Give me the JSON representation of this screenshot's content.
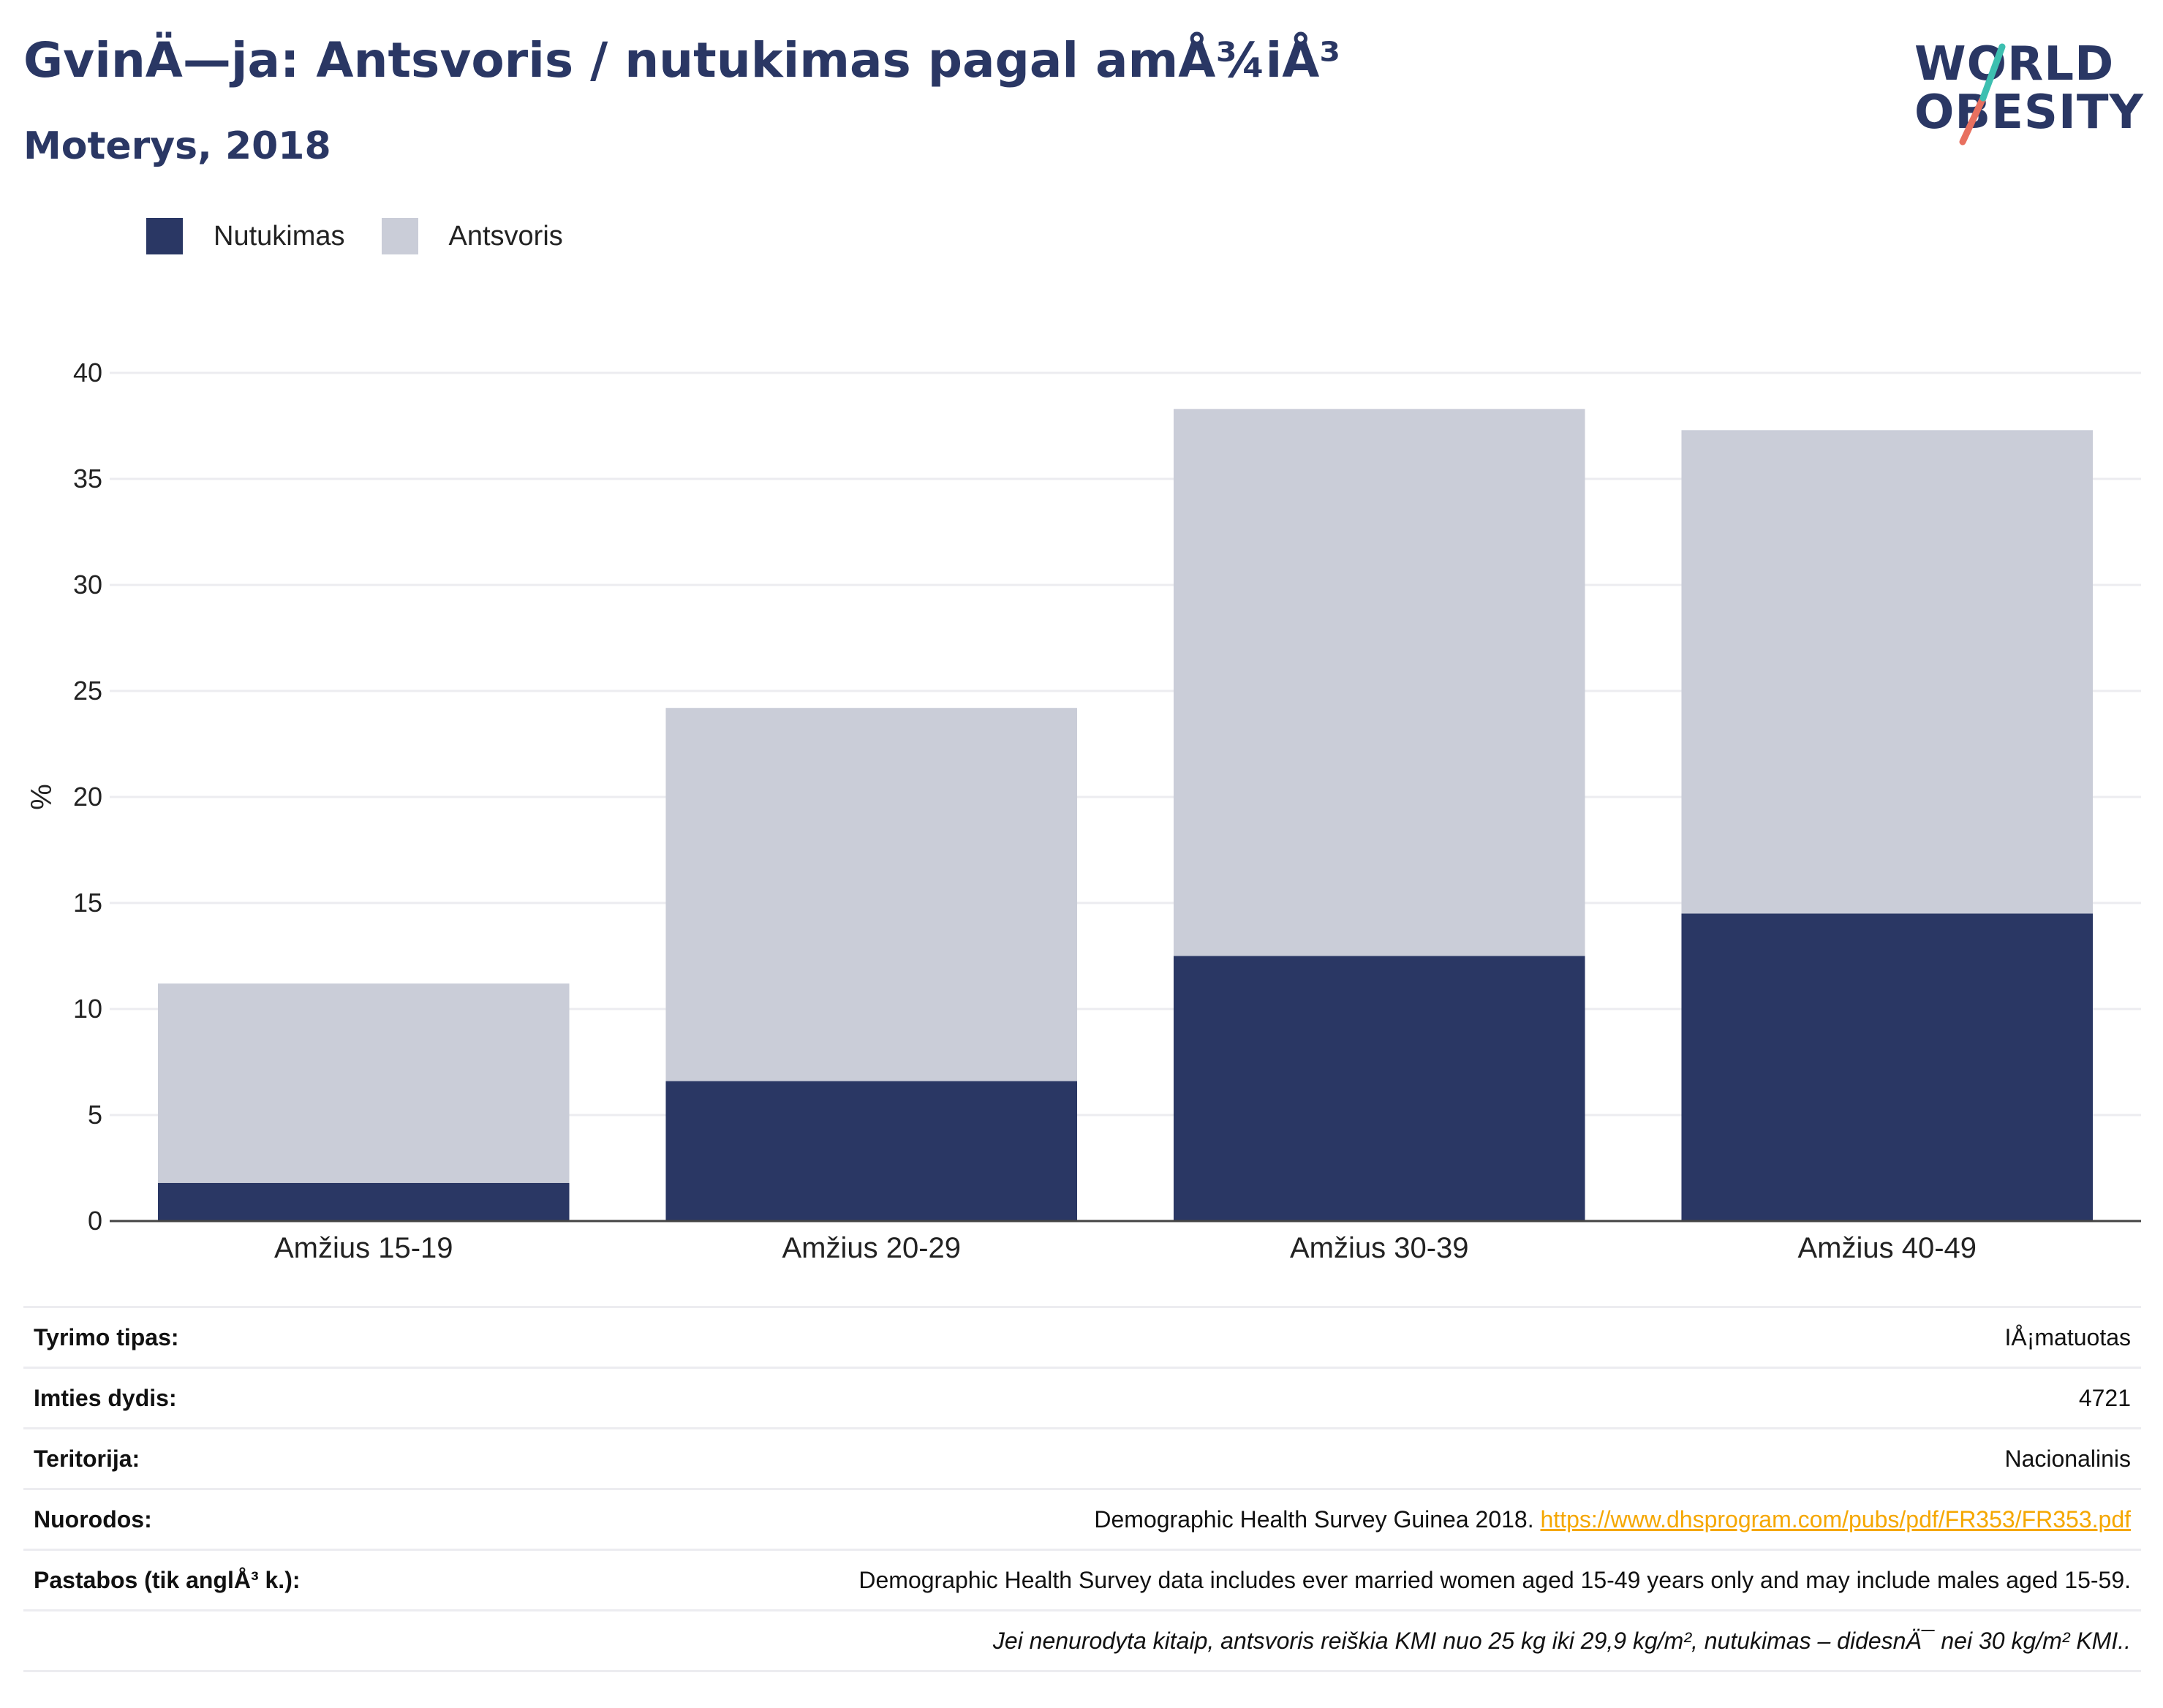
{
  "header": {
    "title": "GvinÄ—ja: Antsvoris / nutukimas pagal amÅ¾iÅ³",
    "subtitle": "Moterys, 2018"
  },
  "logo": {
    "line1": "WORLD",
    "line2": "OBESITY"
  },
  "legend": [
    {
      "label": "Nutukimas",
      "color": "#2a3764"
    },
    {
      "label": "Antsvoris",
      "color": "#cacdd8"
    }
  ],
  "chart_data": {
    "type": "bar",
    "stacked": true,
    "categories": [
      "Amžius 15-19",
      "Amžius 20-29",
      "Amžius 30-39",
      "Amžius 40-49"
    ],
    "series": [
      {
        "name": "Nutukimas",
        "values": [
          1.8,
          6.6,
          12.5,
          14.5
        ],
        "color": "#2a3764"
      },
      {
        "name": "Antsvoris",
        "values": [
          9.4,
          17.6,
          25.8,
          22.8
        ],
        "color": "#cacdd8"
      }
    ],
    "ylabel": "%",
    "ylim": [
      0,
      40
    ],
    "yticks": [
      0,
      5,
      10,
      15,
      20,
      25,
      30,
      35,
      40
    ],
    "grid": true,
    "legend_position": "top-left"
  },
  "info": [
    {
      "key": "Tyrimo tipas:",
      "value": "IÅ¡matuotas"
    },
    {
      "key": "Imties dydis:",
      "value": "4721"
    },
    {
      "key": "Teritorija:",
      "value": "Nacionalinis"
    },
    {
      "key": "Nuorodos:",
      "value": "Demographic Health Survey Guinea 2018.",
      "link": "https://www.dhsprogram.com/pubs/pdf/FR353/FR353.pdf"
    },
    {
      "key": "Pastabos (tik anglÅ³ k.):",
      "value": "Demographic Health Survey data includes ever married women aged 15-49 years only and may include males aged 15-59."
    }
  ],
  "footnote": "Jei nenurodyta kitaip, antsvoris reiškia KMI nuo 25 kg iki 29,9 kg/m², nutukimas – didesnÄ¯ nei 30 kg/m² KMI.."
}
